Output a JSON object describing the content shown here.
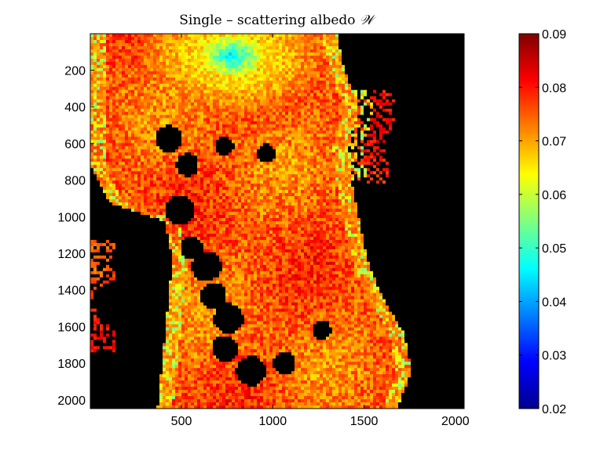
{
  "chart_data": {
    "type": "heatmap",
    "title": "Single – scattering albedo",
    "title_symbol": "𝒲",
    "xlabel": "",
    "ylabel": "",
    "xlim": [
      1,
      2048
    ],
    "ylim": [
      2048,
      1
    ],
    "x_ticks": [
      500,
      1000,
      1500,
      2000
    ],
    "y_ticks": [
      200,
      400,
      600,
      800,
      1000,
      1200,
      1400,
      1600,
      1800,
      2000
    ],
    "colormap": "jet",
    "clim": [
      0.02,
      0.09
    ],
    "colorbar_ticks": [
      0.09,
      0.08,
      0.07,
      0.06,
      0.05,
      0.04,
      0.03,
      0.02
    ],
    "background_value": "no data (black)",
    "typical_value": 0.075,
    "bright_region_value": 0.045
  }
}
